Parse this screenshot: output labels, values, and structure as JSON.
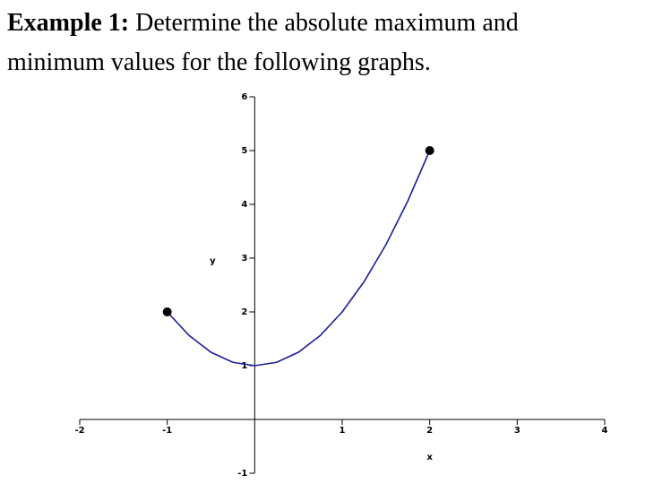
{
  "heading": {
    "label": "Example 1:",
    "text": "Determine the absolute maximum and minimum values for the following graphs."
  },
  "chart_data": {
    "type": "line",
    "xlabel": "x",
    "ylabel": "y",
    "x": [
      -1,
      -0.75,
      -0.5,
      -0.25,
      0,
      0.25,
      0.5,
      0.75,
      1,
      1.25,
      1.5,
      1.75,
      2
    ],
    "values": [
      2,
      1.5625,
      1.25,
      1.0625,
      1,
      1.0625,
      1.25,
      1.5625,
      2,
      2.5625,
      3.25,
      4.0625,
      5
    ],
    "color": "#1c1c9c",
    "endpoint_color": "#000000",
    "xlim": [
      -2,
      4
    ],
    "ylim": [
      -1,
      6
    ],
    "xticks": [
      -2,
      -1,
      1,
      2,
      3,
      4
    ],
    "yticks": [
      -1,
      1,
      2,
      3,
      4,
      5,
      6
    ]
  }
}
